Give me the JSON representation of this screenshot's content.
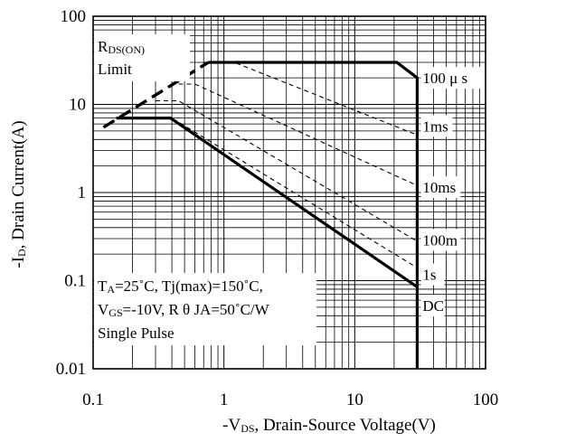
{
  "chart_data": {
    "type": "line",
    "x_scale": "log",
    "y_scale": "log",
    "xlim": [
      0.1,
      100
    ],
    "ylim": [
      0.01,
      100
    ],
    "grid": true,
    "xticks": [
      {
        "value": 0.1,
        "label": "0.1"
      },
      {
        "value": 1,
        "label": "1"
      },
      {
        "value": 10,
        "label": "10"
      },
      {
        "value": 100,
        "label": "100"
      }
    ],
    "yticks": [
      {
        "value": 100,
        "label": "100"
      },
      {
        "value": 10,
        "label": "10"
      },
      {
        "value": 1,
        "label": "1"
      },
      {
        "value": 0.1,
        "label": "0.1"
      },
      {
        "value": 0.01,
        "label": "0.01"
      }
    ],
    "xlabel": {
      "pre": "-V",
      "sub": "DS",
      "post": ", Drain-Source Voltage(V)"
    },
    "ylabel": {
      "pre": "-I",
      "sub": "D",
      "post": ", Drain Current(A)"
    },
    "series": [
      {
        "name": "100 μ s",
        "style": "solid-thick",
        "points": [
          [
            0.76,
            30
          ],
          [
            21,
            30
          ],
          [
            30,
            20
          ],
          [
            30,
            0.01
          ]
        ]
      },
      {
        "name": "1ms",
        "style": "dashed",
        "points": [
          [
            0.7,
            30
          ],
          [
            1.2,
            30
          ],
          [
            30,
            4.5
          ]
        ]
      },
      {
        "name": "10ms",
        "style": "dashed",
        "points": [
          [
            0.45,
            17
          ],
          [
            0.6,
            17
          ],
          [
            30,
            1.2
          ]
        ]
      },
      {
        "name": "100m",
        "style": "dashed",
        "points": [
          [
            0.3,
            11
          ],
          [
            0.45,
            11
          ],
          [
            30,
            0.28
          ]
        ]
      },
      {
        "name": "1s",
        "style": "dashed",
        "points": [
          [
            0.15,
            7
          ],
          [
            0.4,
            7
          ],
          [
            30,
            0.14
          ]
        ]
      },
      {
        "name": "DC",
        "style": "solid-thick",
        "points": [
          [
            0.15,
            7
          ],
          [
            0.39,
            7
          ],
          [
            30,
            0.085
          ]
        ]
      },
      {
        "name": "R_DS(ON) Limit",
        "style": "dashed-thick",
        "points": [
          [
            0.12,
            5.5
          ],
          [
            0.76,
            30
          ]
        ]
      }
    ],
    "curve_labels": [
      {
        "text": "100 μ s",
        "x": 32,
        "y": 20
      },
      {
        "text": "1ms",
        "x": 32,
        "y": 5.7
      },
      {
        "text": "10ms",
        "x": 32,
        "y": 1.15
      },
      {
        "text": "100m",
        "x": 32,
        "y": 0.29
      },
      {
        "text": "1s",
        "x": 32,
        "y": 0.118
      },
      {
        "text": "DC",
        "x": 32,
        "y": 0.052
      }
    ],
    "limit_label": {
      "line1_pre": "R",
      "line1_sub": "DS(ON)",
      "line2": "Limit"
    },
    "conditions": {
      "line1": {
        "pre": "T",
        "sub": "A",
        "post": "=25˚C, Tj(max)=150˚C,"
      },
      "line2": {
        "pre": "V",
        "sub": "GS",
        "post": "=-10V, R θ JA=50˚C/W"
      },
      "line3": "Single Pulse"
    }
  }
}
